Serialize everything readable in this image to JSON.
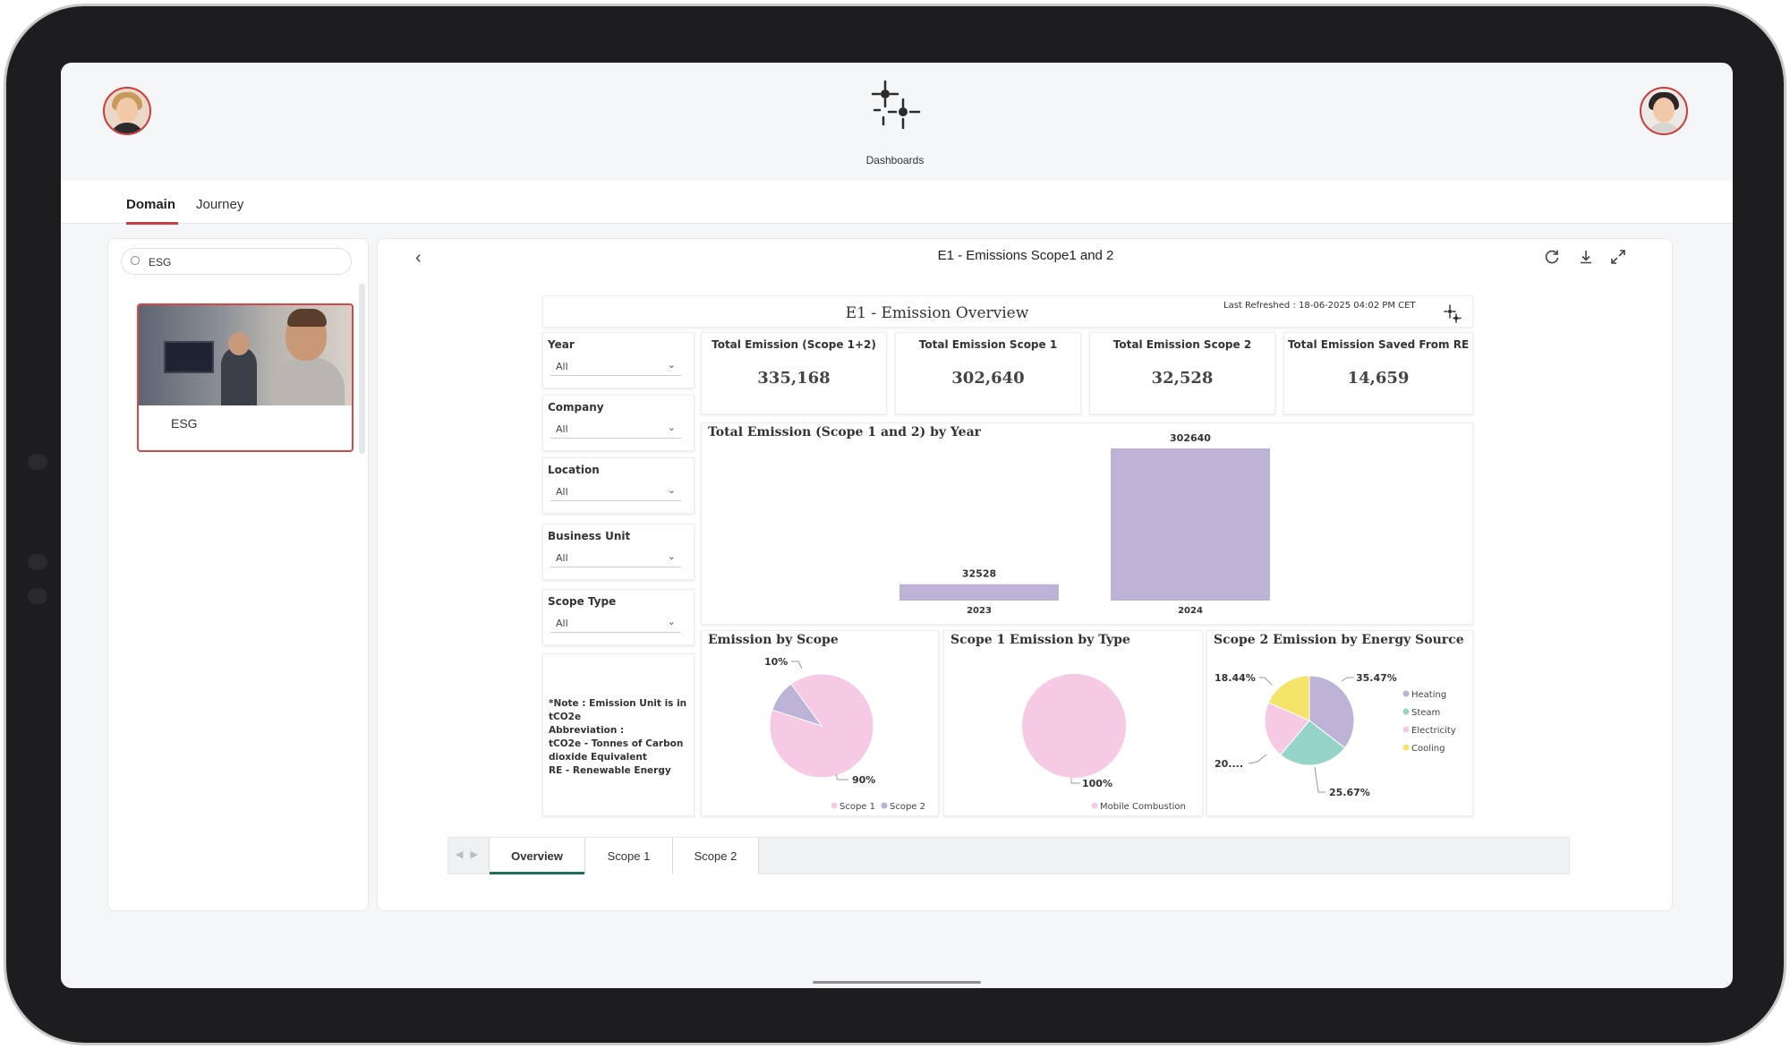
{
  "header": {
    "title": "Dashboards",
    "logo_icon": "dashboards-sparkle-icon",
    "left_avatar_icon": "user-avatar-woman",
    "right_avatar_icon": "user-avatar-man"
  },
  "nav": {
    "tabs": [
      "Domain",
      "Journey"
    ],
    "active": "Domain"
  },
  "sidebar": {
    "search_value": "ESG",
    "cards": [
      {
        "label": "ESG",
        "selected": true
      }
    ]
  },
  "panel": {
    "title": "E1 - Emissions Scope1 and 2",
    "toolbar_icons": [
      "refresh-icon",
      "download-icon",
      "expand-icon"
    ]
  },
  "report": {
    "title": "E1 - Emission Overview",
    "last_refreshed": "Last Refreshed : 18-06-2025 04:02 PM CET",
    "slicers": [
      {
        "label": "Year",
        "value": "All"
      },
      {
        "label": "Company",
        "value": "All"
      },
      {
        "label": "Location",
        "value": "All"
      },
      {
        "label": "Business Unit",
        "value": "All"
      },
      {
        "label": "Scope Type",
        "value": "All"
      }
    ],
    "kpis": [
      {
        "label": "Total Emission (Scope 1+2)",
        "value": "335,168"
      },
      {
        "label": "Total Emission Scope 1",
        "value": "302,640"
      },
      {
        "label": "Total Emission Scope 2",
        "value": "32,528"
      },
      {
        "label": "Total Emission Saved From RE",
        "value": "14,659"
      }
    ],
    "note": "*Note : Emission Unit is in tCO2e\nAbbreviation :\ntCO2e - Tonnes of Carbon dioxide Equivalent\nRE - Renewable Energy",
    "colors": {
      "scope1": "#f6c9e4",
      "scope2": "#bcb3d6",
      "heating": "#bcb3d6",
      "steam": "#96d4c8",
      "electricity": "#f6c9e4",
      "cooling": "#f4e46a"
    }
  },
  "page_tabs": {
    "tabs": [
      "Overview",
      "Scope 1",
      "Scope 2"
    ],
    "active": "Overview"
  },
  "chart_data": [
    {
      "type": "bar",
      "title": "Total Emission (Scope 1 and 2) by Year",
      "categories": [
        "2023",
        "2024"
      ],
      "values": [
        32528,
        302640
      ],
      "data_labels": [
        "32528",
        "302640"
      ],
      "xlabel": "",
      "ylabel": "",
      "ylim": [
        0,
        302640
      ],
      "grid": false
    },
    {
      "type": "pie",
      "title": "Emission by Scope",
      "labels": [
        "Scope 1",
        "Scope 2"
      ],
      "values": [
        90,
        10
      ],
      "data_labels": [
        "90%",
        "10%"
      ],
      "legend": "bottom"
    },
    {
      "type": "pie",
      "title": "Scope 1 Emission by Type",
      "labels": [
        "Mobile Combustion"
      ],
      "values": [
        100
      ],
      "data_labels": [
        "100%"
      ],
      "legend": "bottom"
    },
    {
      "type": "pie",
      "title": "Scope 2 Emission by Energy Source",
      "labels": [
        "Heating",
        "Steam",
        "Electricity",
        "Cooling"
      ],
      "values": [
        35.47,
        25.67,
        20.42,
        18.44
      ],
      "data_labels": [
        "35.47%",
        "25.67%",
        "20....",
        "18.44%"
      ],
      "legend": "right"
    }
  ]
}
